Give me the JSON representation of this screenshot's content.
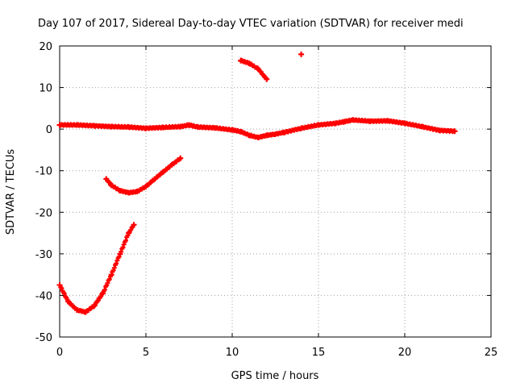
{
  "chart_data": {
    "type": "scatter",
    "title": "Day 107 of 2017, Sidereal Day-to-day VTEC variation (SDTVAR) for receiver medi",
    "xlabel": "GPS time / hours",
    "ylabel": "SDTVAR / TECUs",
    "xlim": [
      0,
      25
    ],
    "ylim": [
      -50,
      20
    ],
    "x_ticks": [
      0,
      5,
      10,
      15,
      20,
      25
    ],
    "y_ticks": [
      -50,
      -40,
      -30,
      -20,
      -10,
      0,
      10,
      20
    ],
    "x_tick_labels": [
      "0",
      "5",
      "10",
      "15",
      "20",
      "25"
    ],
    "y_tick_labels": [
      "-50",
      "-40",
      "-30",
      "-20",
      "-10",
      "0",
      "10",
      "20"
    ],
    "grid": true,
    "marker": "+",
    "series": [
      {
        "name": "main-trace",
        "color": "#ff0000",
        "x": [
          0,
          1,
          2,
          3,
          4,
          5,
          6,
          7,
          7.5,
          8,
          9,
          10,
          10.5,
          11,
          11.5,
          12,
          12.5,
          13,
          14,
          15,
          16,
          16.5,
          17,
          18,
          19,
          20,
          21,
          22,
          22.9
        ],
        "y": [
          1,
          1,
          0.8,
          0.6,
          0.5,
          0.2,
          0.4,
          0.6,
          1,
          0.5,
          0.3,
          -0.2,
          -0.6,
          -1.5,
          -2,
          -1.5,
          -1.2,
          -0.8,
          0.2,
          1,
          1.4,
          1.8,
          2.2,
          1.9,
          2.0,
          1.4,
          0.6,
          -0.3,
          -0.5
        ]
      },
      {
        "name": "arc-upper",
        "color": "#ff0000",
        "x": [
          10.5,
          11,
          11.5,
          12
        ],
        "y": [
          16.5,
          15.8,
          14.5,
          12
        ]
      },
      {
        "name": "isolated-point",
        "color": "#ff0000",
        "x": [
          14
        ],
        "y": [
          18
        ]
      },
      {
        "name": "arc-middle",
        "color": "#ff0000",
        "x": [
          2.7,
          3,
          3.5,
          4,
          4.5,
          5,
          5.5,
          6,
          6.5,
          7
        ],
        "y": [
          -12,
          -13.5,
          -14.8,
          -15.3,
          -15,
          -13.8,
          -12,
          -10.3,
          -8.6,
          -7
        ]
      },
      {
        "name": "arc-lower",
        "color": "#ff0000",
        "x": [
          0,
          0.5,
          1,
          1.5,
          2,
          2.5,
          3,
          3.5,
          4,
          4.3
        ],
        "y": [
          -37.5,
          -41.5,
          -43.5,
          -44,
          -42.5,
          -39.5,
          -35,
          -30,
          -25,
          -23
        ]
      }
    ]
  }
}
